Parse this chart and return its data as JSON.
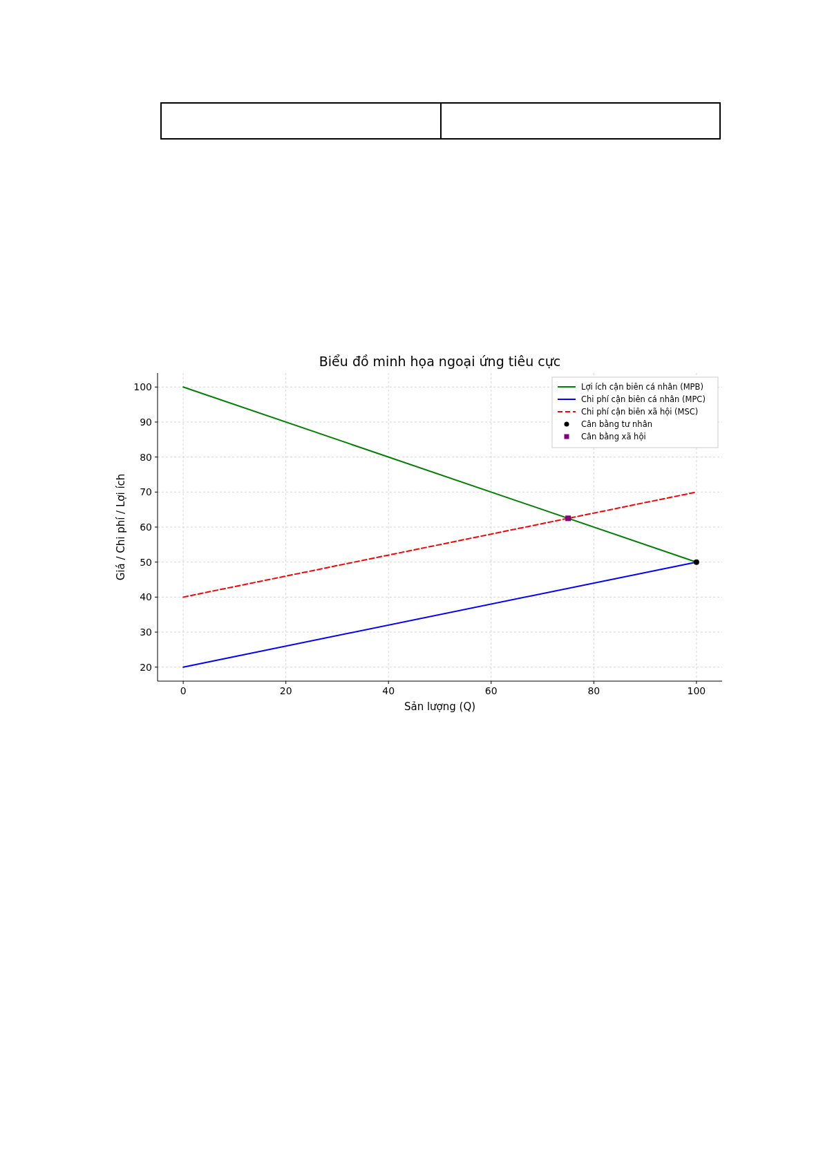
{
  "chart_data": {
    "type": "line",
    "title": "Biểu đồ minh họa ngoại ứng tiêu cực",
    "xlabel": "Sản lượng (Q)",
    "ylabel": "Giá / Chi phí / Lợi ích",
    "xlim": [
      -5,
      105
    ],
    "xticks": [
      0,
      20,
      40,
      60,
      80,
      100
    ],
    "ylim": [
      16,
      104
    ],
    "yticks": [
      20,
      30,
      40,
      50,
      60,
      70,
      80,
      90,
      100
    ],
    "grid": true,
    "legend": "top right",
    "series": [
      {
        "name": "Lợi ích cận biên cá nhân (MPB)",
        "color": "#008000",
        "x": [
          0,
          100
        ],
        "values": [
          100,
          50
        ]
      },
      {
        "name": "Chi phí cận biên cá nhân (MPC)",
        "color": "#0000ff",
        "x": [
          0,
          100
        ],
        "values": [
          20,
          50
        ]
      },
      {
        "name": "Chi phí cận biên xã hội (MSC)",
        "color": "#ff0000",
        "x": [
          0,
          100
        ],
        "values": [
          40,
          70
        ],
        "line_style": "dashed"
      },
      {
        "name": "Cân bằng tư nhân",
        "type": "scatter",
        "color": "#000000",
        "x": [
          100
        ],
        "values": [
          50
        ],
        "marker": "circle"
      },
      {
        "name": "Cân bằng xã hội",
        "type": "scatter",
        "color": "#800080",
        "x": [
          75
        ],
        "values": [
          62.5
        ],
        "marker": "square"
      }
    ]
  }
}
